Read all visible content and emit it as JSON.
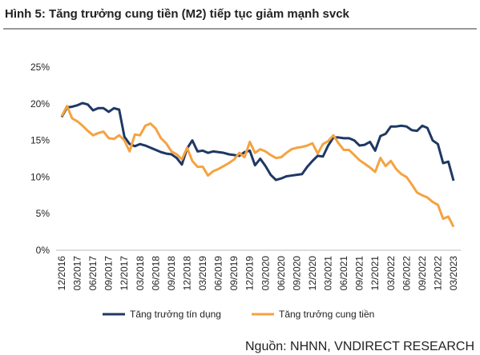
{
  "chart_data": {
    "type": "line",
    "title": "Hình 5: Tăng trưởng cung tiền (M2) tiếp tục giảm mạnh svck",
    "source": "Nguồn: NHNN, VNDIRECT RESEARCH",
    "categories": [
      "12/2016",
      null,
      null,
      "03/2017",
      null,
      null,
      "06/2017",
      null,
      null,
      "09/2017",
      null,
      null,
      "12/2017",
      null,
      null,
      "03/2018",
      null,
      null,
      "06/2018",
      null,
      null,
      "09/2018",
      null,
      null,
      "12/2018",
      null,
      null,
      "03/2019",
      null,
      null,
      "06/2019",
      null,
      null,
      "09/2019",
      null,
      null,
      "12/2019",
      null,
      null,
      "03/2020",
      null,
      null,
      "06/2020",
      null,
      null,
      "09/2020",
      null,
      null,
      "12/2020",
      null,
      null,
      "03/2021",
      null,
      null,
      "06/2021",
      null,
      null,
      "09/2021",
      null,
      null,
      "12/2021",
      null,
      null,
      "03/2022",
      null,
      null,
      "06/2022",
      null,
      null,
      "09/2022",
      null,
      null,
      "12/2022",
      null,
      null,
      "03/2023"
    ],
    "series": [
      {
        "name": "Tăng trưởng tín dụng",
        "color": "#1f3864",
        "values": [
          18.2,
          19.5,
          19.6,
          19.8,
          20.1,
          19.9,
          19.1,
          19.4,
          19.4,
          18.9,
          19.4,
          19.2,
          15.5,
          14.5,
          14.2,
          14.5,
          14.3,
          14.0,
          13.7,
          13.4,
          13.2,
          13.1,
          12.6,
          11.7,
          13.9,
          15.0,
          13.5,
          13.6,
          13.3,
          13.5,
          13.4,
          13.3,
          13.1,
          13.0,
          12.9,
          13.4,
          13.6,
          11.6,
          12.5,
          11.5,
          10.3,
          9.6,
          9.8,
          10.1,
          10.2,
          10.3,
          10.4,
          11.4,
          12.2,
          12.9,
          12.8,
          14.3,
          15.4,
          15.4,
          15.3,
          15.3,
          15.0,
          14.3,
          14.4,
          14.8,
          13.6,
          15.6,
          15.9,
          16.9,
          16.9,
          17.0,
          16.9,
          16.4,
          16.3,
          17.0,
          16.7,
          15.0,
          14.5,
          11.9,
          12.1,
          9.5
        ]
      },
      {
        "name": "Tăng trưởng cung tiền",
        "color": "#f4a341",
        "values": [
          18.3,
          19.7,
          18.0,
          17.6,
          17.0,
          16.3,
          15.7,
          16.0,
          16.2,
          15.3,
          15.2,
          15.7,
          15.0,
          13.5,
          15.8,
          15.7,
          17.0,
          17.3,
          16.6,
          15.3,
          14.6,
          13.5,
          13.1,
          12.4,
          14.0,
          12.2,
          11.4,
          11.4,
          10.2,
          10.8,
          11.1,
          11.5,
          11.9,
          12.4,
          13.3,
          12.7,
          14.8,
          13.3,
          13.8,
          13.5,
          13.0,
          12.6,
          12.7,
          13.3,
          13.8,
          14.0,
          14.1,
          14.3,
          14.6,
          13.2,
          14.5,
          14.9,
          15.7,
          14.6,
          13.7,
          13.7,
          13.0,
          12.3,
          11.8,
          11.3,
          10.7,
          12.6,
          11.5,
          12.2,
          11.1,
          10.4,
          10.0,
          9.0,
          7.9,
          7.5,
          7.2,
          6.6,
          6.2,
          4.3,
          4.6,
          3.2
        ]
      }
    ],
    "ylim": [
      0,
      25
    ],
    "yticks": [
      {
        "value": 0,
        "label": "0%"
      },
      {
        "value": 5,
        "label": "5%"
      },
      {
        "value": 10,
        "label": "10%"
      },
      {
        "value": 15,
        "label": "15%"
      },
      {
        "value": 20,
        "label": "20%"
      },
      {
        "value": 25,
        "label": "25%"
      }
    ],
    "grid": false
  }
}
